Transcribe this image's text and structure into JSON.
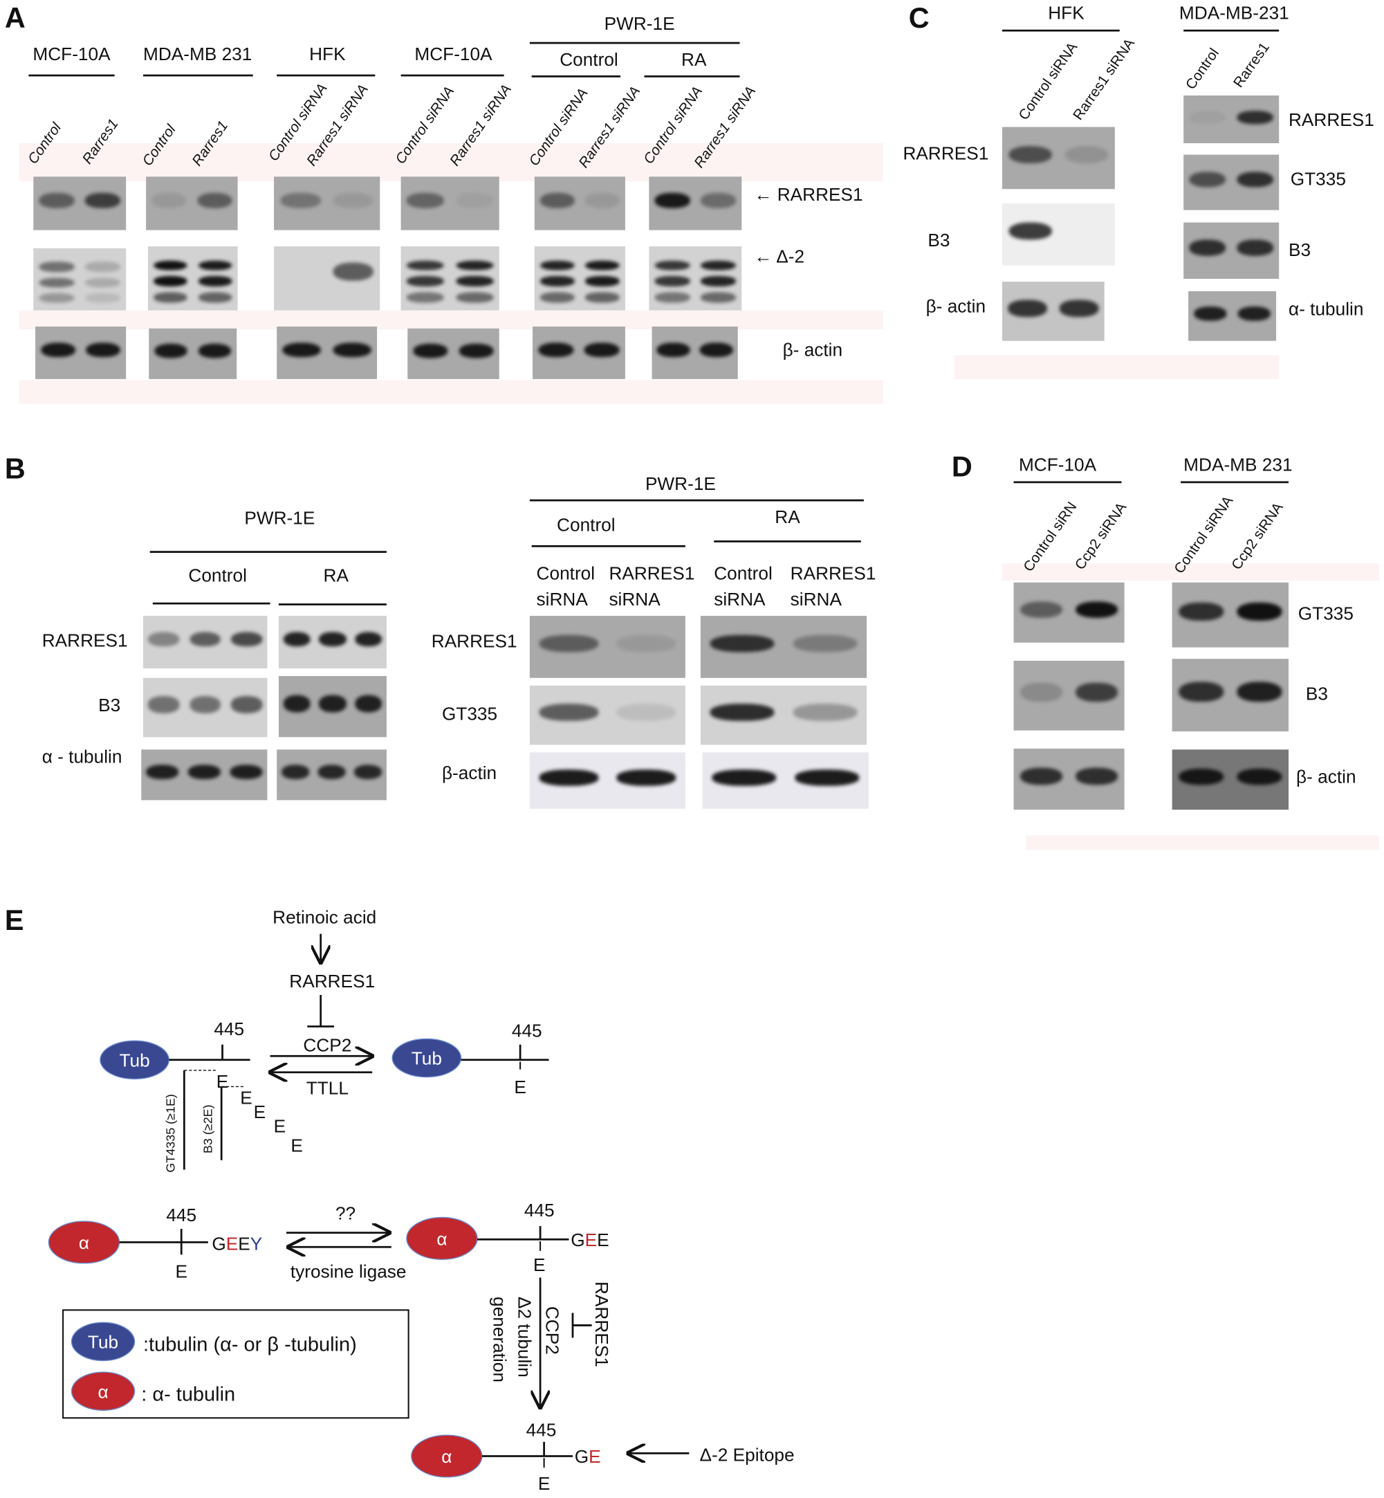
{
  "panel_a": {
    "letter": "A",
    "groups": [
      "MCF-10A",
      "MDA-MB 231",
      "HFK",
      "MCF-10A"
    ],
    "pwr": "PWR-1E",
    "pwr_sub": [
      "Control",
      "RA"
    ],
    "lanes": [
      "Control",
      "Rarres1",
      "Control",
      "Rarres1",
      "Control siRNA",
      "Rarres1 siRNA",
      "Control siRNA",
      "Rarres1 siRNA",
      "Control siRNA",
      "Rarres1 siRNA",
      "Control siRNA",
      "Rarres1 siRNA"
    ],
    "row_labels": [
      "← RARRES1",
      "← Δ-2",
      "β- actin"
    ],
    "blots": {
      "rarres1": [
        [
          0.5,
          0.7
        ],
        [
          0.1,
          0.5
        ],
        [
          0.35,
          0.1
        ],
        [
          0.45,
          0.05
        ],
        [
          0.5,
          0.1
        ],
        [
          0.95,
          0.4
        ]
      ],
      "delta2": [
        [
          0.5,
          0.2
        ],
        [
          1,
          0.95
        ],
        [
          0,
          0.6
        ],
        [
          0.8,
          0.9
        ],
        [
          0.9,
          0.95
        ],
        [
          0.8,
          0.9
        ]
      ],
      "actin": [
        [
          0.95,
          0.95
        ],
        [
          0.95,
          0.95
        ],
        [
          0.95,
          0.95
        ],
        [
          0.95,
          0.95
        ],
        [
          0.95,
          0.95
        ],
        [
          0.95,
          0.95
        ]
      ]
    }
  },
  "panel_b": {
    "letter": "B",
    "left": {
      "title": "PWR-1E",
      "sub": [
        "Control",
        "RA"
      ],
      "row_labels": [
        "RARRES1",
        "B3",
        "α - tubulin"
      ],
      "blots": {
        "rarres1": [
          [
            0.4,
            0.6,
            0.7
          ],
          [
            0.9,
            0.9,
            0.9
          ]
        ],
        "b3": [
          [
            0.5,
            0.5,
            0.6
          ],
          [
            0.9,
            0.9,
            0.9
          ]
        ],
        "tubulin": [
          [
            0.9,
            0.9,
            0.9
          ],
          [
            0.85,
            0.85,
            0.85
          ]
        ]
      }
    },
    "right": {
      "title": "PWR-1E",
      "sub": [
        "Control",
        "RA"
      ],
      "cols": [
        [
          "Control",
          "siRNA"
        ],
        [
          "RARRES1",
          "siRNA"
        ],
        [
          "Control",
          "siRNA"
        ],
        [
          "RARRES1",
          "siRNA"
        ]
      ],
      "row_labels": [
        "RARRES1",
        "GT335",
        "β-actin"
      ],
      "blots": {
        "rarres1": [
          [
            0.5,
            0.1
          ],
          [
            0.8,
            0.3
          ]
        ],
        "gt335": [
          [
            0.6,
            0.1
          ],
          [
            0.85,
            0.3
          ]
        ],
        "actin": [
          [
            0.95,
            0.95
          ],
          [
            0.95,
            0.95
          ]
        ]
      }
    }
  },
  "panel_c": {
    "letter": "C",
    "groups": [
      "HFK",
      "MDA-MB-231"
    ],
    "lanes": [
      "Control siRNA",
      "Rarres1 siRNA",
      "Control",
      "Rarres1"
    ],
    "left_labels": [
      "RARRES1",
      "B3",
      "β- actin"
    ],
    "right_labels": [
      "RARRES1",
      "GT335",
      "B3",
      "α- tubulin"
    ],
    "blots": {
      "left": [
        [
          0.6,
          0.15
        ],
        [
          0.8,
          0
        ],
        [
          0.8,
          0.8
        ]
      ],
      "right": [
        [
          0.05,
          0.8
        ],
        [
          0.6,
          0.8
        ],
        [
          0.8,
          0.8
        ],
        [
          0.9,
          0.9
        ]
      ]
    }
  },
  "panel_d": {
    "letter": "D",
    "groups": [
      "MCF-10A",
      "MDA-MB 231"
    ],
    "lanes": [
      "Control siRN",
      "Ccp2 siRNA",
      "Control siRNA",
      "Ccp2 siRNA"
    ],
    "row_labels": [
      "GT335",
      "B3",
      "β- actin"
    ],
    "blots": {
      "left": [
        [
          0.5,
          1
        ],
        [
          0.2,
          0.7
        ],
        [
          0.8,
          0.8
        ]
      ],
      "right": [
        [
          0.8,
          1
        ],
        [
          0.8,
          0.9
        ],
        [
          0.95,
          0.95
        ]
      ]
    }
  },
  "panel_e": {
    "letter": "E",
    "retinoic_acid": "Retinoic acid",
    "rarres1": "RARRES1",
    "ccp2": "CCP2",
    "ttll": "TTLL",
    "tub": "Tub",
    "alpha": "α",
    "pos": "445",
    "e": "E",
    "gt_label": "GT4335 (≥1E)",
    "b3_label": "B3 (≥2E)",
    "unknown": "??",
    "tyrosine_ligase": "tyrosine ligase",
    "geey": [
      "G",
      "E",
      "E",
      "Y"
    ],
    "gee": [
      "G",
      "E",
      "E"
    ],
    "ge": [
      "G",
      "E"
    ],
    "vertical": {
      "rarres1": "RARRES1",
      "ccp2": "CCP2",
      "d2_tubulin": "Δ2 tubulin",
      "generation": "generation"
    },
    "epitope": "Δ-2 Epitope",
    "legend": {
      "tub": ":tubulin (α- or β -tubulin)",
      "alpha": ": α- tubulin"
    },
    "colors": {
      "tub": "#3a4791",
      "alpha": "#c1272d",
      "red_residue": "#c1272d",
      "blue_residue": "#2a3a8a"
    }
  }
}
